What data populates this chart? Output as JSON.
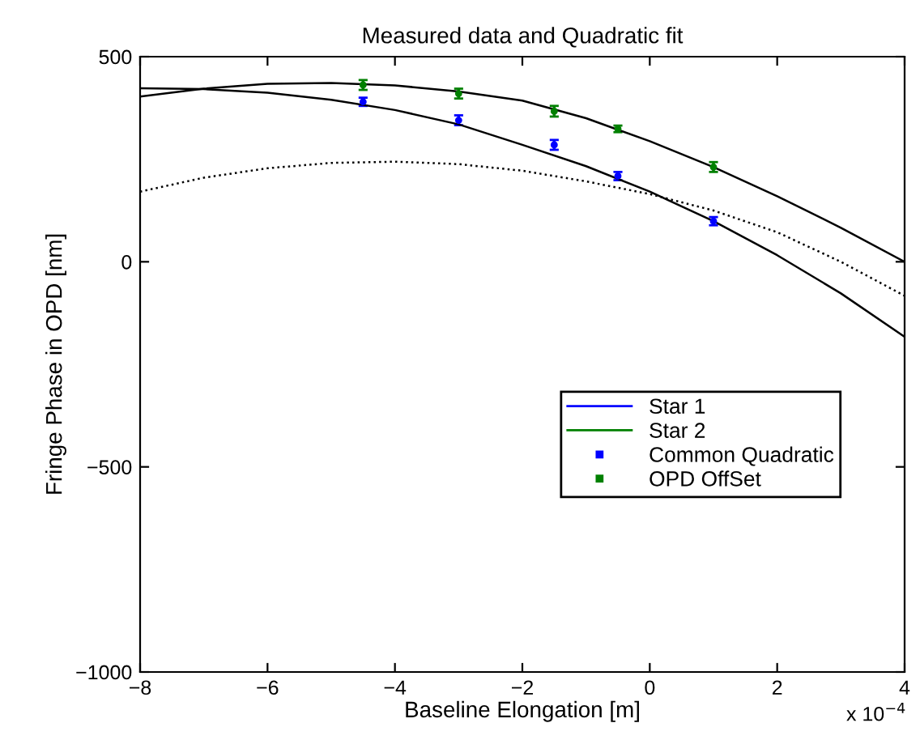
{
  "chart_data": {
    "type": "line",
    "title": "Measured data and Quadratic fit",
    "xlabel": "Baseline Elongation [m]",
    "ylabel": "Fringe Phase in OPD [nm]",
    "annotations": [
      "x 10$^{−4}$"
    ],
    "xlim": [
      -8,
      4
    ],
    "ylim": [
      -1000,
      500
    ],
    "xticks": [
      {
        "value": -8,
        "label": "−8"
      },
      {
        "value": -6,
        "label": "−6"
      },
      {
        "value": -4,
        "label": "−4"
      },
      {
        "value": -2,
        "label": "−2"
      },
      0,
      2,
      4
    ],
    "yticks": [
      {
        "value": -1000,
        "label": "−1000"
      },
      {
        "value": -500,
        "label": "−500"
      },
      0,
      500
    ],
    "grid": false,
    "legend": "right",
    "series": [
      {
        "name": "Star 1",
        "type": "scatter",
        "marker": "circle",
        "color": "#0000ff",
        "x": [
          -4.5,
          -3,
          -1.5,
          -0.5,
          1
        ],
        "values": [
          390,
          345,
          285,
          209,
          99
        ],
        "errors": [
          10,
          12,
          12,
          10,
          10
        ]
      },
      {
        "name": "Star 2",
        "type": "scatter",
        "marker": "circle",
        "color": "#008000",
        "x": [
          -4.5,
          -3,
          -1.5,
          -0.5,
          1
        ],
        "values": [
          431,
          410,
          367,
          324,
          231
        ],
        "errors": [
          12,
          12,
          13,
          8,
          12
        ]
      },
      {
        "name": "Common Quadratic",
        "type": "scatter",
        "marker": "square",
        "color": "#0000ff"
      },
      {
        "name": "OPD OffSet",
        "type": "scatter",
        "marker": "square",
        "color": "#008000"
      },
      {
        "color": "#000000",
        "line_style": "solid",
        "x": [
          -8,
          -7,
          -6,
          -5,
          -4,
          -3,
          -2,
          -1,
          0,
          1,
          2,
          3,
          4
        ],
        "values": [
          423,
          421,
          412,
          395,
          370,
          335,
          285,
          233,
          171,
          99,
          16,
          -77,
          -183
        ]
      },
      {
        "color": "#000000",
        "line_style": "solid",
        "x": [
          -8,
          -7,
          -6,
          -5,
          -4,
          -3,
          -2,
          -1,
          0,
          1,
          2,
          3,
          4
        ],
        "values": [
          403,
          422,
          434,
          436,
          430,
          415,
          393,
          350,
          294,
          231,
          160,
          83,
          0
        ]
      },
      {
        "color": "#000000",
        "line_style": "dotted",
        "x": [
          -8,
          -7,
          -6,
          -5,
          -4,
          -3,
          -2,
          -1,
          0,
          1,
          2,
          3,
          4
        ],
        "values": [
          171,
          205,
          228,
          241,
          244,
          238,
          222,
          196,
          165,
          125,
          72,
          0,
          -83
        ]
      }
    ]
  }
}
